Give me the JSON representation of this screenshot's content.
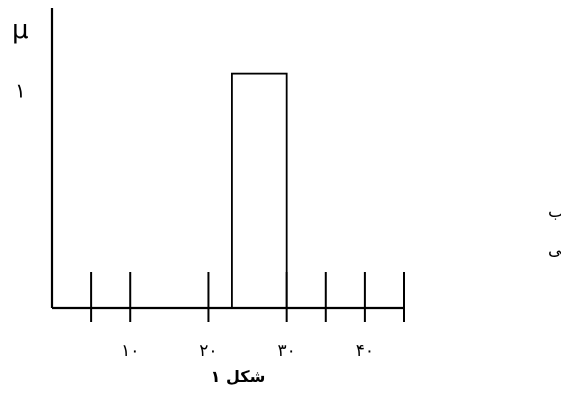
{
  "chart_data": {
    "type": "bar",
    "ylabel": "μ",
    "xlabel": "",
    "y_tick_labels": [
      {
        "value": 1,
        "label": "١"
      }
    ],
    "x_tick_labels": [
      {
        "value": 10,
        "label": "١٠"
      },
      {
        "value": 20,
        "label": "٢٠"
      },
      {
        "value": 30,
        "label": "٣٠"
      },
      {
        "value": 40,
        "label": "۴٠"
      }
    ],
    "x_ticks": [
      5,
      10,
      20,
      30,
      35,
      40,
      45
    ],
    "xlim": [
      0,
      45
    ],
    "ylim": [
      0,
      1.28
    ],
    "bars": [
      {
        "x_start": 23,
        "x_end": 30,
        "value": 1
      }
    ],
    "legend_lines": [
      "جذب",
      "چربی"
    ],
    "caption": "شکل ١"
  }
}
